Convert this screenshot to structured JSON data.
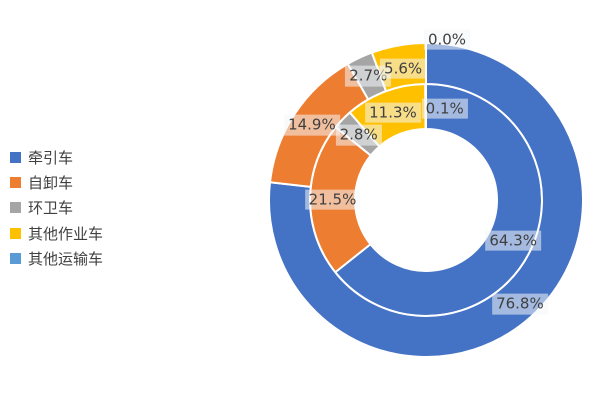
{
  "chart_data": {
    "type": "pie",
    "subtype": "nested-doughnut",
    "title": "",
    "categories": [
      "牵引车",
      "自卸车",
      "环卫车",
      "其他作业车",
      "其他运输车"
    ],
    "colors": [
      "#4472C4",
      "#ED7D31",
      "#A5A5A5",
      "#FFC000",
      "#5B9BD5"
    ],
    "series": [
      {
        "name": "inner-ring",
        "values": [
          64.3,
          21.5,
          2.8,
          11.3,
          0.1
        ],
        "labels": [
          "64.3%",
          "21.5%",
          "2.8%",
          "11.3%",
          "0.1%"
        ]
      },
      {
        "name": "outer-ring",
        "values": [
          76.8,
          14.9,
          2.7,
          5.6,
          0.0
        ],
        "labels": [
          "76.8%",
          "14.9%",
          "2.7%",
          "5.6%",
          "0.0%"
        ]
      }
    ],
    "start_angle_deg": 0,
    "direction": "clockwise",
    "legend_position": "left",
    "label_text_color": "#404040",
    "slice_border_color": "#ffffff"
  },
  "legend": {
    "items": [
      {
        "label": "牵引车"
      },
      {
        "label": "自卸车"
      },
      {
        "label": "环卫车"
      },
      {
        "label": "其他作业车"
      },
      {
        "label": "其他运输车"
      }
    ]
  }
}
